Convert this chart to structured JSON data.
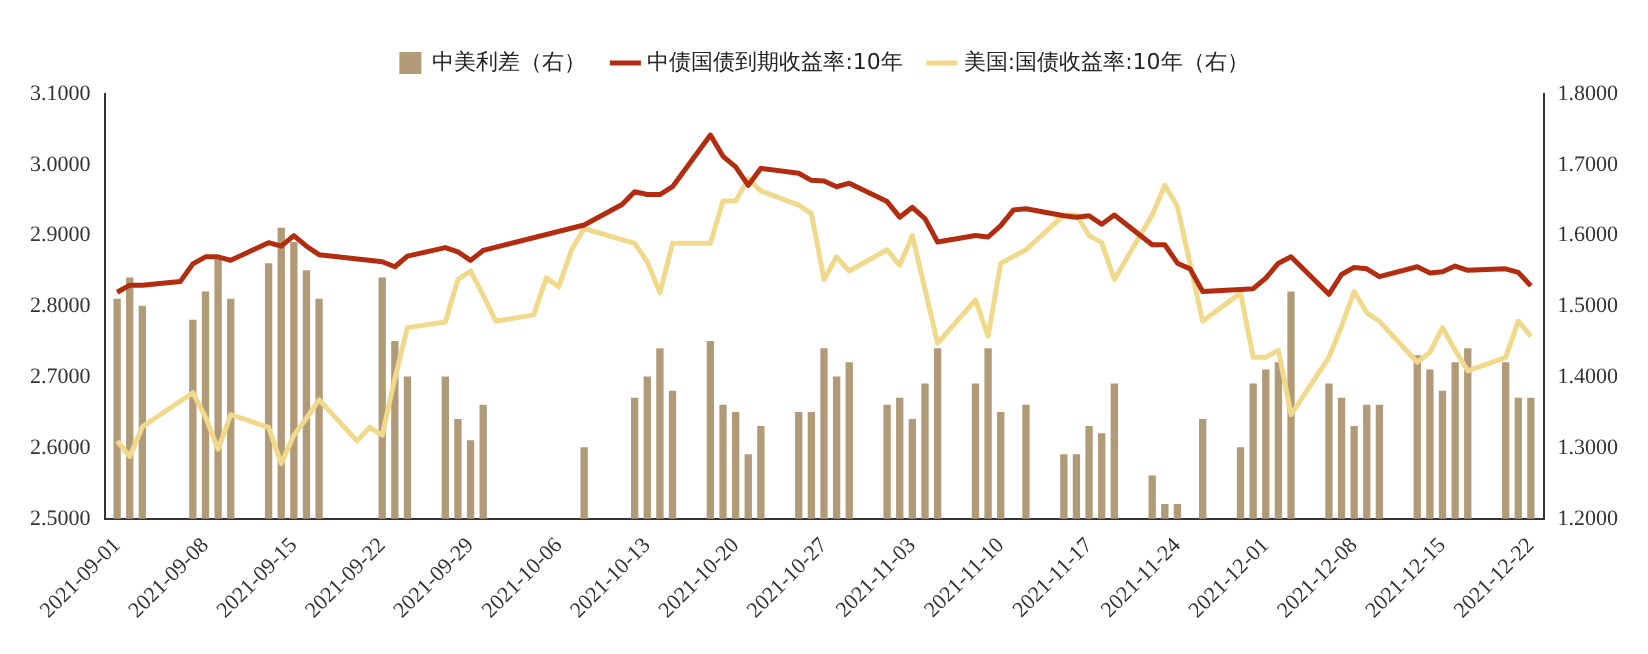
{
  "chart_data": {
    "type": "line",
    "series": [
      {
        "name": "中美利差（右）",
        "type": "bar",
        "axis": "y2",
        "color": "#b09a78",
        "x": [
          "2021-09-01",
          "2021-09-02",
          "2021-09-03",
          "2021-09-07",
          "2021-09-08",
          "2021-09-09",
          "2021-09-10",
          "2021-09-13",
          "2021-09-14",
          "2021-09-15",
          "2021-09-16",
          "2021-09-17",
          "2021-09-22",
          "2021-09-23",
          "2021-09-24",
          "2021-09-27",
          "2021-09-28",
          "2021-09-29",
          "2021-09-30",
          "2021-10-08",
          "2021-10-12",
          "2021-10-13",
          "2021-10-14",
          "2021-10-15",
          "2021-10-18",
          "2021-10-19",
          "2021-10-20",
          "2021-10-21",
          "2021-10-22",
          "2021-10-25",
          "2021-10-26",
          "2021-10-27",
          "2021-10-28",
          "2021-10-29",
          "2021-11-01",
          "2021-11-02",
          "2021-11-03",
          "2021-11-04",
          "2021-11-05",
          "2021-11-08",
          "2021-11-09",
          "2021-11-10",
          "2021-11-12",
          "2021-11-15",
          "2021-11-16",
          "2021-11-17",
          "2021-11-18",
          "2021-11-19",
          "2021-11-22",
          "2021-11-23",
          "2021-11-24",
          "2021-11-26",
          "2021-11-29",
          "2021-11-30",
          "2021-12-01",
          "2021-12-02",
          "2021-12-03",
          "2021-12-06",
          "2021-12-07",
          "2021-12-08",
          "2021-12-09",
          "2021-12-10",
          "2021-12-13",
          "2021-12-14",
          "2021-12-15",
          "2021-12-16",
          "2021-12-17",
          "2021-12-20",
          "2021-12-21",
          "2021-12-22"
        ],
        "values": [
          1.51,
          1.54,
          1.5,
          1.48,
          1.52,
          1.57,
          1.51,
          1.56,
          1.61,
          1.59,
          1.55,
          1.51,
          1.54,
          1.45,
          1.4,
          1.4,
          1.34,
          1.31,
          1.36,
          1.3,
          1.37,
          1.4,
          1.44,
          1.38,
          1.45,
          1.36,
          1.35,
          1.29,
          1.33,
          1.35,
          1.35,
          1.44,
          1.4,
          1.42,
          1.36,
          1.37,
          1.34,
          1.39,
          1.44,
          1.39,
          1.44,
          1.35,
          1.36,
          1.29,
          1.29,
          1.33,
          1.32,
          1.39,
          1.26,
          1.22,
          1.22,
          1.34,
          1.3,
          1.39,
          1.41,
          1.42,
          1.52,
          1.39,
          1.37,
          1.33,
          1.36,
          1.36,
          1.43,
          1.41,
          1.38,
          1.42,
          1.44,
          1.42,
          1.37,
          1.37
        ]
      },
      {
        "name": "中债国债到期收益率:10年",
        "axis": "y",
        "color": "#b22c10",
        "x": [
          "2021-09-01",
          "2021-09-02",
          "2021-09-03",
          "2021-09-06",
          "2021-09-07",
          "2021-09-08",
          "2021-09-09",
          "2021-09-10",
          "2021-09-13",
          "2021-09-14",
          "2021-09-15",
          "2021-09-16",
          "2021-09-17",
          "2021-09-22",
          "2021-09-23",
          "2021-09-24",
          "2021-09-27",
          "2021-09-28",
          "2021-09-29",
          "2021-09-30",
          "2021-10-08",
          "2021-10-11",
          "2021-10-12",
          "2021-10-13",
          "2021-10-14",
          "2021-10-15",
          "2021-10-18",
          "2021-10-19",
          "2021-10-20",
          "2021-10-21",
          "2021-10-22",
          "2021-10-25",
          "2021-10-26",
          "2021-10-27",
          "2021-10-28",
          "2021-10-29",
          "2021-11-01",
          "2021-11-02",
          "2021-11-03",
          "2021-11-04",
          "2021-11-05",
          "2021-11-08",
          "2021-11-09",
          "2021-11-10",
          "2021-11-11",
          "2021-11-12",
          "2021-11-15",
          "2021-11-16",
          "2021-11-17",
          "2021-11-18",
          "2021-11-19",
          "2021-11-22",
          "2021-11-23",
          "2021-11-24",
          "2021-11-25",
          "2021-11-26",
          "2021-11-29",
          "2021-11-30",
          "2021-12-01",
          "2021-12-02",
          "2021-12-03",
          "2021-12-06",
          "2021-12-07",
          "2021-12-08",
          "2021-12-09",
          "2021-12-10",
          "2021-12-13",
          "2021-12-14",
          "2021-12-15",
          "2021-12-16",
          "2021-12-17",
          "2021-12-20",
          "2021-12-21",
          "2021-12-22"
        ],
        "values": [
          2.82,
          2.83,
          2.83,
          2.835,
          2.86,
          2.87,
          2.87,
          2.865,
          2.89,
          2.885,
          2.9,
          2.885,
          2.873,
          2.863,
          2.856,
          2.871,
          2.883,
          2.877,
          2.865,
          2.879,
          2.915,
          2.944,
          2.962,
          2.958,
          2.958,
          2.969,
          3.042,
          3.012,
          2.997,
          2.971,
          2.995,
          2.988,
          2.978,
          2.977,
          2.969,
          2.974,
          2.948,
          2.926,
          2.94,
          2.924,
          2.891,
          2.9,
          2.898,
          2.914,
          2.936,
          2.938,
          2.928,
          2.926,
          2.928,
          2.916,
          2.929,
          2.887,
          2.887,
          2.861,
          2.853,
          2.821,
          2.824,
          2.825,
          2.84,
          2.861,
          2.87,
          2.817,
          2.845,
          2.855,
          2.853,
          2.842,
          2.856,
          2.847,
          2.849,
          2.857,
          2.851,
          2.853,
          2.848,
          2.829
        ]
      },
      {
        "name": "美国:国债收益率:10年（右）",
        "axis": "y2",
        "color": "#f0d98a",
        "x": [
          "2021-09-01",
          "2021-09-02",
          "2021-09-03",
          "2021-09-07",
          "2021-09-08",
          "2021-09-09",
          "2021-09-10",
          "2021-09-13",
          "2021-09-14",
          "2021-09-15",
          "2021-09-16",
          "2021-09-17",
          "2021-09-20",
          "2021-09-21",
          "2021-09-22",
          "2021-09-23",
          "2021-09-24",
          "2021-09-27",
          "2021-09-28",
          "2021-09-29",
          "2021-09-30",
          "2021-10-01",
          "2021-10-04",
          "2021-10-05",
          "2021-10-06",
          "2021-10-07",
          "2021-10-08",
          "2021-10-12",
          "2021-10-13",
          "2021-10-14",
          "2021-10-15",
          "2021-10-18",
          "2021-10-19",
          "2021-10-20",
          "2021-10-21",
          "2021-10-22",
          "2021-10-25",
          "2021-10-26",
          "2021-10-27",
          "2021-10-28",
          "2021-10-29",
          "2021-11-01",
          "2021-11-02",
          "2021-11-03",
          "2021-11-04",
          "2021-11-05",
          "2021-11-08",
          "2021-11-09",
          "2021-11-10",
          "2021-11-12",
          "2021-11-15",
          "2021-11-16",
          "2021-11-17",
          "2021-11-18",
          "2021-11-19",
          "2021-11-22",
          "2021-11-23",
          "2021-11-24",
          "2021-11-26",
          "2021-11-29",
          "2021-11-30",
          "2021-12-01",
          "2021-12-02",
          "2021-12-03",
          "2021-12-06",
          "2021-12-07",
          "2021-12-08",
          "2021-12-09",
          "2021-12-10",
          "2021-12-13",
          "2021-12-14",
          "2021-12-15",
          "2021-12-16",
          "2021-12-17",
          "2021-12-20",
          "2021-12-21",
          "2021-12-22"
        ],
        "values": [
          1.31,
          1.288,
          1.33,
          1.378,
          1.344,
          1.298,
          1.347,
          1.329,
          1.278,
          1.318,
          1.342,
          1.368,
          1.31,
          1.329,
          1.318,
          1.398,
          1.47,
          1.478,
          1.538,
          1.55,
          1.516,
          1.479,
          1.488,
          1.54,
          1.528,
          1.58,
          1.61,
          1.589,
          1.563,
          1.519,
          1.589,
          1.589,
          1.649,
          1.649,
          1.68,
          1.663,
          1.643,
          1.631,
          1.538,
          1.57,
          1.55,
          1.58,
          1.558,
          1.6,
          1.524,
          1.448,
          1.509,
          1.458,
          1.561,
          1.58,
          1.629,
          1.629,
          1.6,
          1.59,
          1.538,
          1.629,
          1.671,
          1.641,
          1.479,
          1.519,
          1.428,
          1.428,
          1.438,
          1.347,
          1.428,
          1.472,
          1.521,
          1.491,
          1.479,
          1.421,
          1.435,
          1.47,
          1.438,
          1.409,
          1.428,
          1.479,
          1.458
        ]
      }
    ],
    "xlim": [
      "2021-08-31",
      "2021-12-23"
    ],
    "xticks": [
      "2021-09-01",
      "2021-09-08",
      "2021-09-15",
      "2021-09-22",
      "2021-09-29",
      "2021-10-06",
      "2021-10-13",
      "2021-10-20",
      "2021-10-27",
      "2021-11-03",
      "2021-11-10",
      "2021-11-17",
      "2021-11-24",
      "2021-12-01",
      "2021-12-08",
      "2021-12-15",
      "2021-12-22"
    ],
    "ylim": [
      2.5,
      3.1
    ],
    "yticks": [
      {
        "value": 2.5,
        "label": "2.5000"
      },
      {
        "value": 2.6,
        "label": "2.6000"
      },
      {
        "value": 2.7,
        "label": "2.7000"
      },
      {
        "value": 2.8,
        "label": "2.8000"
      },
      {
        "value": 2.9,
        "label": "2.9000"
      },
      {
        "value": 3.0,
        "label": "3.0000"
      },
      {
        "value": 3.1,
        "label": "3.1000"
      }
    ],
    "y2lim": [
      1.2,
      1.8
    ],
    "y2ticks": [
      {
        "value": 1.2,
        "label": "1.2000"
      },
      {
        "value": 1.3,
        "label": "1.3000"
      },
      {
        "value": 1.4,
        "label": "1.4000"
      },
      {
        "value": 1.5,
        "label": "1.5000"
      },
      {
        "value": 1.6,
        "label": "1.6000"
      },
      {
        "value": 1.7,
        "label": "1.7000"
      },
      {
        "value": 1.8,
        "label": "1.8000"
      }
    ],
    "grid": false,
    "legend": "top"
  }
}
